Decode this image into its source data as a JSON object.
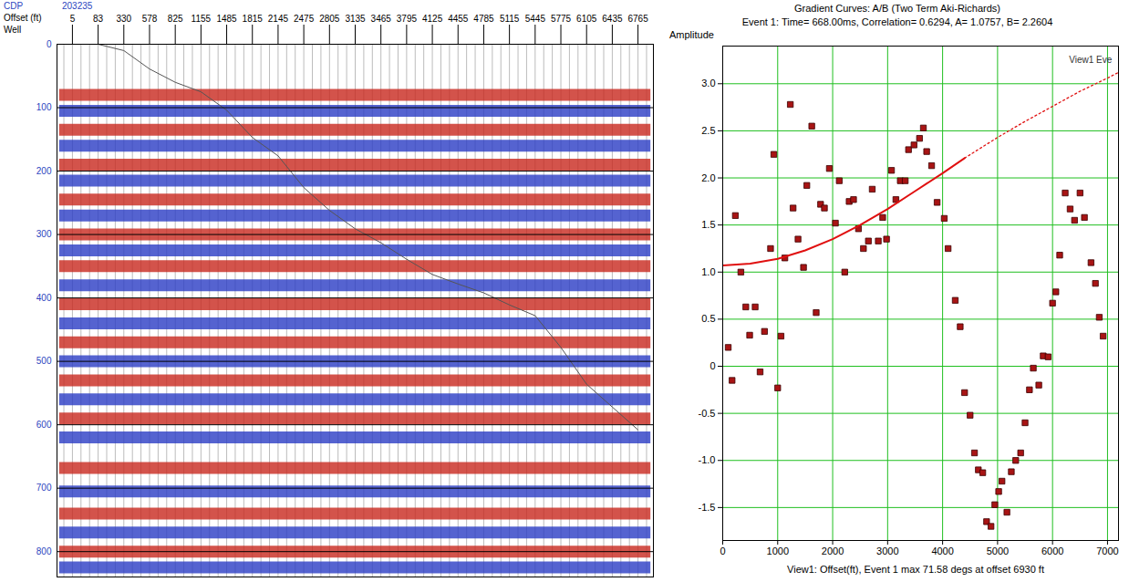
{
  "chart_data": [
    {
      "type": "gather",
      "header_labels": [
        "CDP",
        "Offset (ft)",
        "Well"
      ],
      "cdp": 203235,
      "categories": [
        5,
        83,
        330,
        578,
        825,
        1155,
        1485,
        1815,
        2145,
        2475,
        2805,
        3135,
        3465,
        3795,
        4125,
        4455,
        4785,
        5115,
        5445,
        5775,
        6105,
        6435,
        6765
      ],
      "mute_times": [
        0,
        0,
        10,
        39,
        60,
        75,
        104,
        147,
        176,
        226,
        262,
        291,
        313,
        339,
        363,
        378,
        392,
        411,
        428,
        478,
        536,
        572,
        608
      ],
      "events": [
        {
          "time": 80,
          "color": "#c8281e"
        },
        {
          "time": 105,
          "color": "#2a3cc4"
        },
        {
          "time": 135,
          "color": "#c8281e"
        },
        {
          "time": 160,
          "color": "#2a3cc4"
        },
        {
          "time": 190,
          "color": "#c8281e"
        },
        {
          "time": 215,
          "color": "#2a3cc4"
        },
        {
          "time": 245,
          "color": "#c8281e"
        },
        {
          "time": 270,
          "color": "#2a3cc4"
        },
        {
          "time": 300,
          "color": "#c8281e"
        },
        {
          "time": 325,
          "color": "#2a3cc4"
        },
        {
          "time": 350,
          "color": "#c8281e"
        },
        {
          "time": 380,
          "color": "#2a3cc4"
        },
        {
          "time": 410,
          "color": "#c8281e"
        },
        {
          "time": 440,
          "color": "#2a3cc4"
        },
        {
          "time": 470,
          "color": "#c8281e"
        },
        {
          "time": 500,
          "color": "#2a3cc4"
        },
        {
          "time": 530,
          "color": "#c8281e"
        },
        {
          "time": 560,
          "color": "#2a3cc4"
        },
        {
          "time": 590,
          "color": "#c8281e"
        },
        {
          "time": 620,
          "color": "#2a3cc4"
        },
        {
          "time": 668,
          "color": "#c8281e"
        },
        {
          "time": 705,
          "color": "#2a3cc4"
        },
        {
          "time": 740,
          "color": "#c8281e"
        },
        {
          "time": 770,
          "color": "#2a3cc4"
        },
        {
          "time": 800,
          "color": "#c8281e"
        },
        {
          "time": 825,
          "color": "#2a3cc4"
        }
      ],
      "ylim": [
        840,
        0
      ],
      "yticks": [
        0,
        100,
        200,
        300,
        400,
        500,
        600,
        700,
        800
      ],
      "grid": true
    },
    {
      "type": "scatter",
      "title": "Gradient Curves: A/B  (Two Term Aki-Richards)",
      "subtitle": "Event 1: Time= 668.00ms, Correlation= 0.6294, A= 1.0757, B= 2.2604",
      "ylabel": "Amplitude",
      "xlabel": "View1: Offset(ft), Event 1 max 71.58 degs at offset 6930 ft",
      "annotation": {
        "text": "View1 Eve",
        "x": 6300,
        "y": 3.25
      },
      "xlim": [
        0,
        7200
      ],
      "ylim": [
        -1.85,
        3.4
      ],
      "xticks": [
        0,
        1000,
        2000,
        3000,
        4000,
        5000,
        6000,
        7000
      ],
      "yticks": [
        -1.5,
        {
          "value": -1.0,
          "label": "-1.0"
        },
        -0.5,
        0,
        0.5,
        {
          "value": 1.0,
          "label": "1.0"
        },
        1.5,
        {
          "value": 2.0,
          "label": "2.0"
        },
        2.5,
        {
          "value": 3.0,
          "label": "3.0"
        }
      ],
      "grid": true,
      "series": [
        {
          "type": "scatter",
          "color": "#a81414",
          "marker": "square",
          "x": [
            100,
            170,
            230,
            330,
            420,
            490,
            590,
            680,
            760,
            870,
            930,
            1000,
            1060,
            1130,
            1230,
            1280,
            1370,
            1470,
            1530,
            1620,
            1700,
            1780,
            1850,
            1940,
            2050,
            2120,
            2220,
            2300,
            2380,
            2470,
            2560,
            2650,
            2720,
            2830,
            2910,
            2980,
            3070,
            3150,
            3230,
            3320,
            3380,
            3480,
            3580,
            3650,
            3710,
            3800,
            3900,
            4030,
            4100,
            4230,
            4320,
            4400,
            4500,
            4580,
            4650,
            4730,
            4800,
            4880,
            4950,
            5020,
            5080,
            5170,
            5250,
            5330,
            5420,
            5500,
            5580,
            5650,
            5750,
            5830,
            5920,
            6000,
            6060,
            6130,
            6230,
            6320,
            6400,
            6500,
            6580,
            6700,
            6780,
            6850,
            6920
          ],
          "values": [
            0.2,
            -0.15,
            1.6,
            1.0,
            0.63,
            0.33,
            0.63,
            -0.06,
            0.37,
            1.25,
            2.25,
            -0.23,
            0.32,
            1.15,
            2.78,
            1.68,
            1.35,
            1.05,
            1.92,
            2.55,
            0.57,
            1.72,
            1.68,
            2.1,
            1.52,
            1.97,
            1.0,
            1.75,
            1.77,
            1.46,
            1.25,
            1.33,
            1.88,
            1.33,
            1.58,
            1.35,
            2.08,
            1.77,
            1.97,
            1.97,
            2.3,
            2.35,
            2.42,
            2.53,
            2.28,
            2.13,
            1.74,
            1.57,
            1.25,
            0.7,
            0.42,
            -0.28,
            -0.52,
            -0.92,
            -1.1,
            -1.13,
            -1.65,
            -1.7,
            -1.47,
            -1.33,
            -1.22,
            -1.55,
            -1.12,
            -1.0,
            -0.92,
            -0.6,
            -0.25,
            -0.02,
            -0.2,
            0.11,
            0.1,
            0.67,
            0.79,
            1.18,
            1.84,
            1.67,
            1.55,
            1.84,
            1.58,
            1.1,
            0.88,
            0.52,
            0.32
          ]
        },
        {
          "type": "line",
          "color": "#e01010",
          "line_style": "solid",
          "x": [
            0,
            500,
            1000,
            1500,
            2000,
            2500,
            3000,
            3500,
            4000,
            4400
          ],
          "values": [
            1.07,
            1.09,
            1.14,
            1.23,
            1.35,
            1.5,
            1.67,
            1.86,
            2.05,
            2.21
          ]
        },
        {
          "type": "line",
          "color": "#e01010",
          "line_style": "dotted",
          "x": [
            4400,
            5000,
            5500,
            6000,
            6500,
            7000,
            7200
          ],
          "values": [
            2.21,
            2.43,
            2.6,
            2.76,
            2.92,
            3.06,
            3.12
          ]
        }
      ]
    }
  ]
}
